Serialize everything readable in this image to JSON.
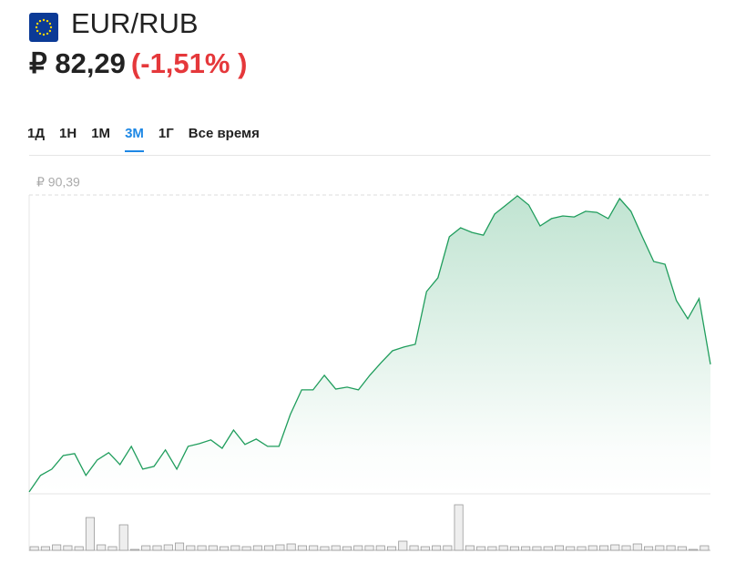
{
  "header": {
    "pair": "EUR/RUB",
    "price": "₽ 82,29",
    "change": "(-1,51% )"
  },
  "tabs": [
    "1Д",
    "1Н",
    "1М",
    "3М",
    "1Г",
    "Все время"
  ],
  "active_tab": 3,
  "chart_data": {
    "type": "area",
    "color": "#1f9d5c",
    "ylim": [
      76.1,
      90.39
    ],
    "yticks": [
      {
        "value": 90.39,
        "label": "₽ 90,39"
      }
    ],
    "values": [
      76.19,
      76.98,
      77.28,
      77.93,
      78.02,
      76.98,
      77.72,
      78.07,
      77.5,
      78.37,
      77.28,
      77.41,
      78.2,
      77.28,
      78.37,
      78.5,
      78.68,
      78.28,
      79.15,
      78.46,
      78.72,
      78.37,
      78.37,
      79.89,
      81.07,
      81.07,
      81.77,
      81.11,
      81.2,
      81.07,
      81.77,
      82.38,
      82.94,
      83.12,
      83.25,
      85.77,
      86.43,
      88.39,
      88.82,
      88.6,
      88.47,
      89.48,
      89.91,
      90.35,
      89.91,
      88.91,
      89.26,
      89.39,
      89.34,
      89.61,
      89.56,
      89.26,
      90.22,
      89.61,
      88.39,
      87.21,
      87.08,
      85.34,
      84.47,
      85.43,
      82.29
    ],
    "volume": [
      4,
      4,
      6,
      5,
      4,
      36,
      6,
      4,
      28,
      1,
      5,
      5,
      6,
      8,
      5,
      5,
      5,
      4,
      5,
      4,
      5,
      5,
      6,
      7,
      5,
      5,
      4,
      5,
      4,
      5,
      5,
      5,
      4,
      10,
      5,
      4,
      5,
      5,
      50,
      5,
      4,
      4,
      5,
      4,
      4,
      4,
      4,
      5,
      4,
      4,
      5,
      5,
      6,
      5,
      7,
      4,
      5,
      5,
      4,
      1,
      5
    ]
  }
}
